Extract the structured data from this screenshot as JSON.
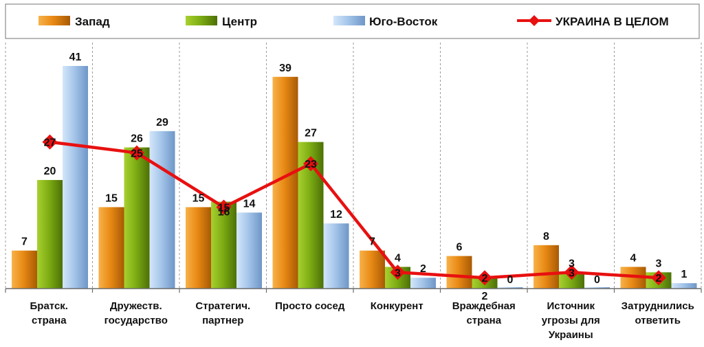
{
  "chart_data": {
    "type": "bar",
    "categories": [
      [
        "Братск.",
        "страна"
      ],
      [
        "Дружеств.",
        "государство"
      ],
      [
        "Стратегич.",
        "партнер"
      ],
      [
        "Просто сосед"
      ],
      [
        "Конкурент"
      ],
      [
        "Враждебная",
        "страна"
      ],
      [
        "Источник",
        "угрозы для",
        "Украины"
      ],
      [
        "Затруднились",
        "ответить"
      ]
    ],
    "series": [
      {
        "name": "Запад",
        "kind": "bar",
        "color": "#E07F0A",
        "values": [
          7,
          15,
          15,
          39,
          7,
          6,
          8,
          4
        ]
      },
      {
        "name": "Центр",
        "kind": "bar",
        "color": "#6E9A10",
        "values": [
          20,
          26,
          16,
          27,
          4,
          2,
          3,
          3
        ]
      },
      {
        "name": "Юго-Восток",
        "kind": "bar",
        "color": "#8CB0D8",
        "values": [
          41,
          29,
          14,
          12,
          2,
          0,
          0,
          1
        ]
      },
      {
        "name": "УКРАИНА В ЦЕЛОМ",
        "kind": "line",
        "color": "#E81010",
        "values": [
          27,
          25,
          15,
          23,
          3,
          2,
          3,
          2
        ]
      }
    ],
    "ylim": [
      0,
      41
    ],
    "legend": "top",
    "grid": "vertical dashed separators"
  }
}
